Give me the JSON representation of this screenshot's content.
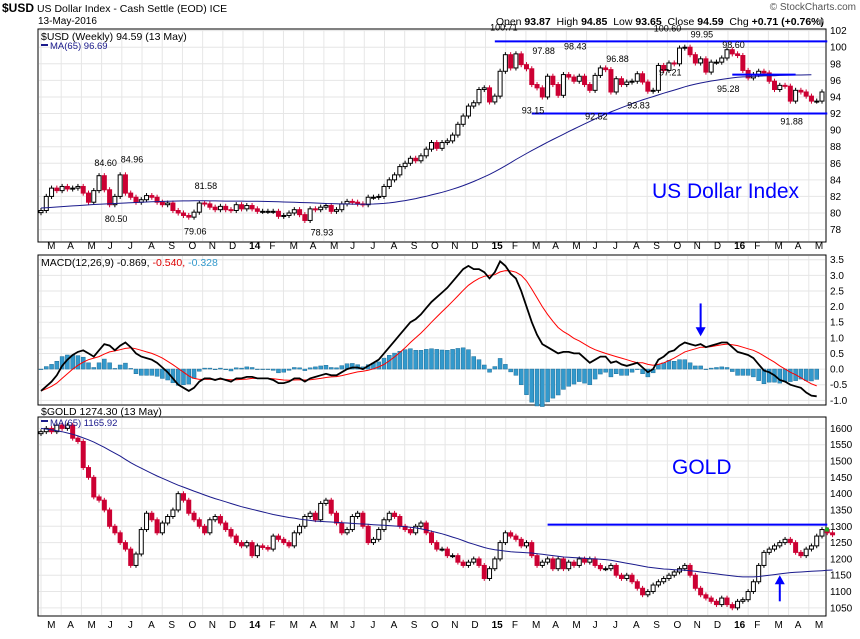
{
  "header": {
    "symbol": "$USD",
    "name": "US Dollar Index - Cash Settle (EOD)",
    "exchange": "ICE",
    "date": "13-May-2016",
    "watermark": "© StockCharts.com",
    "open_label": "Open",
    "open": "93.87",
    "high_label": "High",
    "high": "94.85",
    "low_label": "Low",
    "low": "93.65",
    "close_label": "Close",
    "close": "94.59",
    "chg_label": "Chg",
    "chg": "+0.71 (+0.76%)"
  },
  "colors": {
    "up": "#000000",
    "down": "#cc0033",
    "ma": "#1a1a8c",
    "annot": "#0000ff",
    "macd_line": "#000000",
    "signal_line": "#ff0000",
    "hist": "#3399cc",
    "grid": "#e6e6e6",
    "frame": "#000000"
  },
  "x_axis": {
    "labels": [
      "M",
      "A",
      "M",
      "J",
      "J",
      "A",
      "S",
      "O",
      "N",
      "D",
      "14",
      "F",
      "M",
      "A",
      "M",
      "J",
      "J",
      "A",
      "S",
      "O",
      "N",
      "D",
      "15",
      "F",
      "M",
      "A",
      "M",
      "J",
      "J",
      "A",
      "S",
      "O",
      "N",
      "D",
      "16",
      "F",
      "M",
      "A",
      "M"
    ],
    "bold": [
      "14",
      "15",
      "16"
    ]
  },
  "chart_data": [
    {
      "type": "candlestick",
      "legend": "$USD (Weekly) 94.59 (13 May)",
      "ma_legend": "MA(65) 96.69",
      "annotation": "US Dollar Index",
      "ylim": [
        76.5,
        102.2
      ],
      "yticks": [
        102,
        100,
        98,
        96,
        94,
        92,
        90,
        88,
        86,
        84,
        82,
        80,
        78
      ],
      "closes": [
        80.3,
        82.0,
        83.0,
        82.7,
        83.2,
        82.9,
        83.0,
        83.2,
        82.4,
        81.3,
        82.7,
        84.5,
        82.8,
        81.0,
        82.0,
        84.6,
        82.4,
        81.9,
        81.3,
        81.6,
        82.1,
        81.9,
        81.3,
        81.0,
        81.2,
        80.3,
        80.0,
        79.7,
        79.5,
        80.1,
        81.2,
        81.1,
        80.7,
        80.4,
        80.8,
        80.4,
        80.3,
        81.0,
        80.5,
        80.9,
        80.5,
        80.2,
        80.2,
        80.2,
        80.2,
        79.6,
        79.7,
        80.0,
        80.4,
        79.8,
        79.1,
        80.5,
        80.4,
        80.7,
        80.9,
        80.2,
        80.4,
        81.1,
        81.4,
        81.3,
        81.1,
        81.0,
        81.9,
        81.9,
        82.0,
        83.2,
        84.0,
        84.6,
        85.6,
        86.0,
        86.6,
        86.3,
        86.9,
        87.7,
        88.5,
        87.8,
        88.5,
        88.7,
        89.4,
        90.7,
        91.7,
        92.9,
        93.3,
        94.9,
        95.1,
        93.4,
        94.1,
        97.1,
        99.1,
        97.5,
        99.2,
        97.9,
        97.4,
        95.5,
        95.1,
        94.0,
        96.5,
        95.5,
        94.2,
        96.7,
        96.4,
        95.9,
        96.5,
        95.5,
        94.8,
        96.6,
        97.5,
        97.3,
        94.6,
        96.2,
        95.5,
        95.8,
        95.9,
        96.8,
        95.8,
        94.7,
        94.8,
        97.8,
        97.2,
        98.1,
        98.0,
        99.9,
        100.0,
        99.1,
        98.1,
        98.6,
        97.0,
        98.2,
        98.2,
        98.7,
        99.7,
        99.2,
        99.0,
        97.2,
        96.3,
        96.7,
        97.1,
        96.9,
        95.9,
        94.9,
        95.4,
        95.3,
        93.5,
        94.8,
        94.6,
        94.1,
        93.5,
        93.5,
        94.6
      ],
      "ma": [
        80.6,
        80.64,
        80.68,
        80.72,
        80.77,
        80.81,
        80.85,
        80.89,
        80.94,
        80.98,
        81.02,
        81.06,
        81.09,
        81.12,
        81.15,
        81.18,
        81.21,
        81.24,
        81.27,
        81.3,
        81.33,
        81.36,
        81.38,
        81.4,
        81.42,
        81.44,
        81.45,
        81.46,
        81.46,
        81.47,
        81.47,
        81.47,
        81.46,
        81.46,
        81.45,
        81.44,
        81.44,
        81.43,
        81.43,
        81.42,
        81.42,
        81.41,
        81.4,
        81.39,
        81.37,
        81.35,
        81.33,
        81.31,
        81.29,
        81.27,
        81.25,
        81.23,
        81.21,
        81.18,
        81.15,
        81.13,
        81.11,
        81.09,
        81.08,
        81.07,
        81.06,
        81.06,
        81.07,
        81.09,
        81.12,
        81.16,
        81.22,
        81.3,
        81.4,
        81.5,
        81.62,
        81.74,
        81.88,
        82.02,
        82.18,
        82.34,
        82.5,
        82.68,
        82.87,
        83.08,
        83.3,
        83.55,
        83.8,
        84.08,
        84.37,
        84.66,
        84.98,
        85.33,
        85.7,
        86.07,
        86.45,
        86.82,
        87.18,
        87.53,
        87.87,
        88.2,
        88.54,
        88.87,
        89.18,
        89.5,
        89.82,
        90.13,
        90.45,
        90.75,
        91.05,
        91.35,
        91.65,
        91.95,
        92.2,
        92.45,
        92.7,
        92.95,
        93.2,
        93.43,
        93.65,
        93.85,
        94.04,
        94.25,
        94.45,
        94.65,
        94.83,
        95.02,
        95.22,
        95.39,
        95.55,
        95.69,
        95.8,
        95.92,
        96.02,
        96.12,
        96.22,
        96.3,
        96.37,
        96.42,
        96.45,
        96.49,
        96.52,
        96.54,
        96.56,
        96.57,
        96.6,
        96.62,
        96.64,
        96.65,
        96.65,
        96.66,
        96.69
      ],
      "labels": [
        {
          "text": "84.60",
          "i": 12,
          "v": 85.7
        },
        {
          "text": "84.96",
          "i": 17,
          "v": 86.1
        },
        {
          "text": "80.50",
          "i": 14,
          "v": 78.9
        },
        {
          "text": "81.58",
          "i": 31,
          "v": 82.9
        },
        {
          "text": "79.06",
          "i": 29,
          "v": 77.4
        },
        {
          "text": "78.93",
          "i": 53,
          "v": 77.3
        },
        {
          "text": "100.71",
          "i": 87,
          "v": 102.0
        },
        {
          "text": "97.88",
          "i": 95,
          "v": 99.2
        },
        {
          "text": "98.43",
          "i": 101,
          "v": 99.7
        },
        {
          "text": "96.88",
          "i": 109,
          "v": 98.2
        },
        {
          "text": "100.60",
          "i": 118,
          "v": 101.9
        },
        {
          "text": "99.95",
          "i": 125,
          "v": 101.2
        },
        {
          "text": "98.60",
          "i": 131,
          "v": 99.9
        },
        {
          "text": "97.21",
          "i": 119,
          "v": 96.6
        },
        {
          "text": "95.28",
          "i": 130,
          "v": 94.6
        },
        {
          "text": "93.15",
          "i": 93,
          "v": 92.0
        },
        {
          "text": "92.52",
          "i": 105,
          "v": 91.3
        },
        {
          "text": "93.83",
          "i": 113,
          "v": 92.6
        },
        {
          "text": "91.88",
          "i": 142,
          "v": 90.7
        }
      ],
      "lines": [
        {
          "from": [
            86,
            100.71
          ],
          "to": [
            149,
            100.71
          ]
        },
        {
          "from": [
            93,
            92.0
          ],
          "to": [
            149,
            92.0
          ]
        },
        {
          "from": [
            131,
            96.7
          ],
          "to": [
            143,
            96.7
          ]
        }
      ]
    },
    {
      "type": "macd",
      "legend": "MACD(12,26,9) -0.869, -0.540, -0.328",
      "legend_macd": "MACD(12,26,9) -0.869,",
      "legend_signal": "-0.540,",
      "legend_hist": "-0.328",
      "ylim": [
        -1.15,
        3.65
      ],
      "yticks": [
        3.5,
        3.0,
        2.5,
        2.0,
        1.5,
        1.0,
        0.5,
        0.0,
        -0.5,
        -1.0
      ],
      "macd": [
        -0.7,
        -0.55,
        -0.4,
        -0.2,
        0.1,
        0.3,
        0.45,
        0.55,
        0.6,
        0.5,
        0.4,
        0.6,
        0.8,
        0.75,
        0.6,
        0.75,
        0.85,
        0.7,
        0.5,
        0.4,
        0.35,
        0.3,
        0.2,
        0.05,
        -0.1,
        -0.3,
        -0.5,
        -0.6,
        -0.7,
        -0.6,
        -0.4,
        -0.3,
        -0.3,
        -0.35,
        -0.3,
        -0.35,
        -0.4,
        -0.3,
        -0.3,
        -0.25,
        -0.25,
        -0.3,
        -0.3,
        -0.3,
        -0.35,
        -0.45,
        -0.45,
        -0.4,
        -0.3,
        -0.3,
        -0.4,
        -0.3,
        -0.25,
        -0.2,
        -0.15,
        -0.2,
        -0.2,
        -0.1,
        0.0,
        0.05,
        0.05,
        0.0,
        0.1,
        0.2,
        0.3,
        0.5,
        0.7,
        0.9,
        1.1,
        1.3,
        1.5,
        1.6,
        1.75,
        1.95,
        2.15,
        2.3,
        2.45,
        2.6,
        2.8,
        3.0,
        3.2,
        3.3,
        3.2,
        3.2,
        3.1,
        2.9,
        3.1,
        3.45,
        3.3,
        3.05,
        2.9,
        2.5,
        2.0,
        1.5,
        1.1,
        0.8,
        0.7,
        0.6,
        0.5,
        0.55,
        0.55,
        0.5,
        0.5,
        0.35,
        0.2,
        0.3,
        0.4,
        0.4,
        0.2,
        0.25,
        0.15,
        0.1,
        0.15,
        0.2,
        0.05,
        -0.1,
        0.0,
        0.3,
        0.4,
        0.55,
        0.6,
        0.75,
        0.85,
        0.8,
        0.75,
        0.8,
        0.7,
        0.75,
        0.8,
        0.85,
        0.85,
        0.7,
        0.55,
        0.5,
        0.45,
        0.35,
        0.15,
        -0.05,
        -0.1,
        -0.2,
        -0.35,
        -0.4,
        -0.5,
        -0.55,
        -0.6,
        -0.75,
        -0.85,
        -0.87
      ],
      "signal": [
        -0.7,
        -0.63,
        -0.55,
        -0.45,
        -0.3,
        -0.15,
        0.0,
        0.12,
        0.22,
        0.3,
        0.35,
        0.4,
        0.48,
        0.55,
        0.58,
        0.62,
        0.66,
        0.68,
        0.65,
        0.6,
        0.55,
        0.5,
        0.43,
        0.35,
        0.25,
        0.14,
        0.02,
        -0.1,
        -0.22,
        -0.3,
        -0.33,
        -0.33,
        -0.33,
        -0.33,
        -0.33,
        -0.33,
        -0.34,
        -0.34,
        -0.33,
        -0.32,
        -0.3,
        -0.3,
        -0.3,
        -0.3,
        -0.31,
        -0.33,
        -0.35,
        -0.36,
        -0.35,
        -0.34,
        -0.35,
        -0.34,
        -0.32,
        -0.3,
        -0.27,
        -0.25,
        -0.24,
        -0.21,
        -0.17,
        -0.13,
        -0.09,
        -0.07,
        -0.04,
        0.01,
        0.07,
        0.15,
        0.26,
        0.39,
        0.53,
        0.68,
        0.85,
        1.0,
        1.15,
        1.32,
        1.5,
        1.67,
        1.84,
        2.0,
        2.17,
        2.34,
        2.52,
        2.68,
        2.8,
        2.9,
        2.97,
        3.0,
        3.02,
        3.11,
        3.15,
        3.14,
        3.1,
        3.0,
        2.82,
        2.56,
        2.28,
        2.0,
        1.75,
        1.53,
        1.33,
        1.2,
        1.1,
        0.98,
        0.9,
        0.8,
        0.7,
        0.62,
        0.56,
        0.5,
        0.45,
        0.4,
        0.35,
        0.3,
        0.25,
        0.2,
        0.2,
        0.15,
        0.12,
        0.15,
        0.2,
        0.27,
        0.35,
        0.45,
        0.55,
        0.6,
        0.65,
        0.7,
        0.7,
        0.72,
        0.75,
        0.78,
        0.8,
        0.78,
        0.75,
        0.7,
        0.65,
        0.6,
        0.52,
        0.42,
        0.32,
        0.22,
        0.1,
        0.0,
        -0.1,
        -0.18,
        -0.28,
        -0.38,
        -0.47,
        -0.54
      ],
      "arrow": {
        "i": 125,
        "from": 2.1,
        "to": 1.05
      }
    },
    {
      "type": "candlestick",
      "legend": "$GOLD 1274.30 (13 May)",
      "ma_legend": "MA(65) 1165.92",
      "annotation": "GOLD",
      "ylim": [
        1025,
        1635
      ],
      "yticks": [
        1600,
        1550,
        1500,
        1450,
        1400,
        1350,
        1300,
        1250,
        1200,
        1150,
        1100,
        1050
      ],
      "closes": [
        1590,
        1600,
        1590,
        1610,
        1600,
        1610,
        1570,
        1560,
        1480,
        1450,
        1390,
        1380,
        1350,
        1300,
        1280,
        1250,
        1230,
        1180,
        1215,
        1290,
        1340,
        1320,
        1280,
        1310,
        1330,
        1350,
        1400,
        1380,
        1340,
        1320,
        1300,
        1280,
        1320,
        1330,
        1310,
        1290,
        1270,
        1250,
        1240,
        1250,
        1210,
        1240,
        1235,
        1230,
        1270,
        1260,
        1250,
        1240,
        1280,
        1300,
        1330,
        1340,
        1320,
        1370,
        1380,
        1340,
        1310,
        1280,
        1290,
        1330,
        1340,
        1300,
        1250,
        1260,
        1290,
        1320,
        1340,
        1330,
        1300,
        1290,
        1280,
        1300,
        1310,
        1280,
        1250,
        1230,
        1230,
        1210,
        1210,
        1190,
        1180,
        1190,
        1200,
        1180,
        1140,
        1170,
        1200,
        1250,
        1280,
        1270,
        1260,
        1240,
        1250,
        1210,
        1180,
        1190,
        1200,
        1170,
        1200,
        1170,
        1190,
        1180,
        1200,
        1190,
        1200,
        1180,
        1170,
        1170,
        1180,
        1150,
        1140,
        1150,
        1130,
        1110,
        1090,
        1100,
        1120,
        1130,
        1140,
        1150,
        1160,
        1170,
        1180,
        1150,
        1110,
        1090,
        1080,
        1070,
        1060,
        1080,
        1060,
        1050,
        1070,
        1075,
        1100,
        1130,
        1180,
        1220,
        1230,
        1240,
        1250,
        1260,
        1250,
        1220,
        1210,
        1230,
        1240,
        1270,
        1290,
        1280,
        1274
      ],
      "ma": [
        1600,
        1598,
        1596,
        1593,
        1590,
        1586,
        1582,
        1577,
        1571,
        1565,
        1558,
        1550,
        1542,
        1533,
        1524,
        1515,
        1505,
        1495,
        1486,
        1478,
        1470,
        1462,
        1454,
        1447,
        1440,
        1433,
        1426,
        1420,
        1414,
        1408,
        1402,
        1396,
        1390,
        1385,
        1380,
        1375,
        1370,
        1365,
        1360,
        1356,
        1352,
        1348,
        1344,
        1340,
        1336,
        1333,
        1330,
        1327,
        1325,
        1322,
        1320,
        1318,
        1316,
        1315,
        1314,
        1313,
        1312,
        1311,
        1310,
        1309,
        1308,
        1307,
        1306,
        1305,
        1304,
        1303,
        1302,
        1301,
        1300,
        1299,
        1297,
        1295,
        1292,
        1289,
        1285,
        1281,
        1277,
        1272,
        1267,
        1262,
        1256,
        1250,
        1245,
        1240,
        1235,
        1231,
        1228,
        1226,
        1224,
        1222,
        1221,
        1220,
        1219,
        1218,
        1216,
        1214,
        1212,
        1210,
        1208,
        1206,
        1205,
        1204,
        1203,
        1202,
        1201,
        1200,
        1199,
        1198,
        1196,
        1193,
        1190,
        1187,
        1184,
        1181,
        1178,
        1175,
        1173,
        1171,
        1169,
        1168,
        1167,
        1166,
        1165,
        1164,
        1162,
        1160,
        1158,
        1156,
        1154,
        1152,
        1150,
        1148,
        1146,
        1145,
        1145,
        1145,
        1146,
        1148,
        1150,
        1152,
        1154,
        1156,
        1158,
        1159,
        1160,
        1161,
        1162,
        1163,
        1164,
        1165,
        1165.92
      ],
      "lines": [
        {
          "from": [
            96,
            1305
          ],
          "to": [
            149,
            1305
          ]
        }
      ],
      "arrow": {
        "i": 140,
        "from": 1070,
        "to": 1150
      }
    }
  ]
}
